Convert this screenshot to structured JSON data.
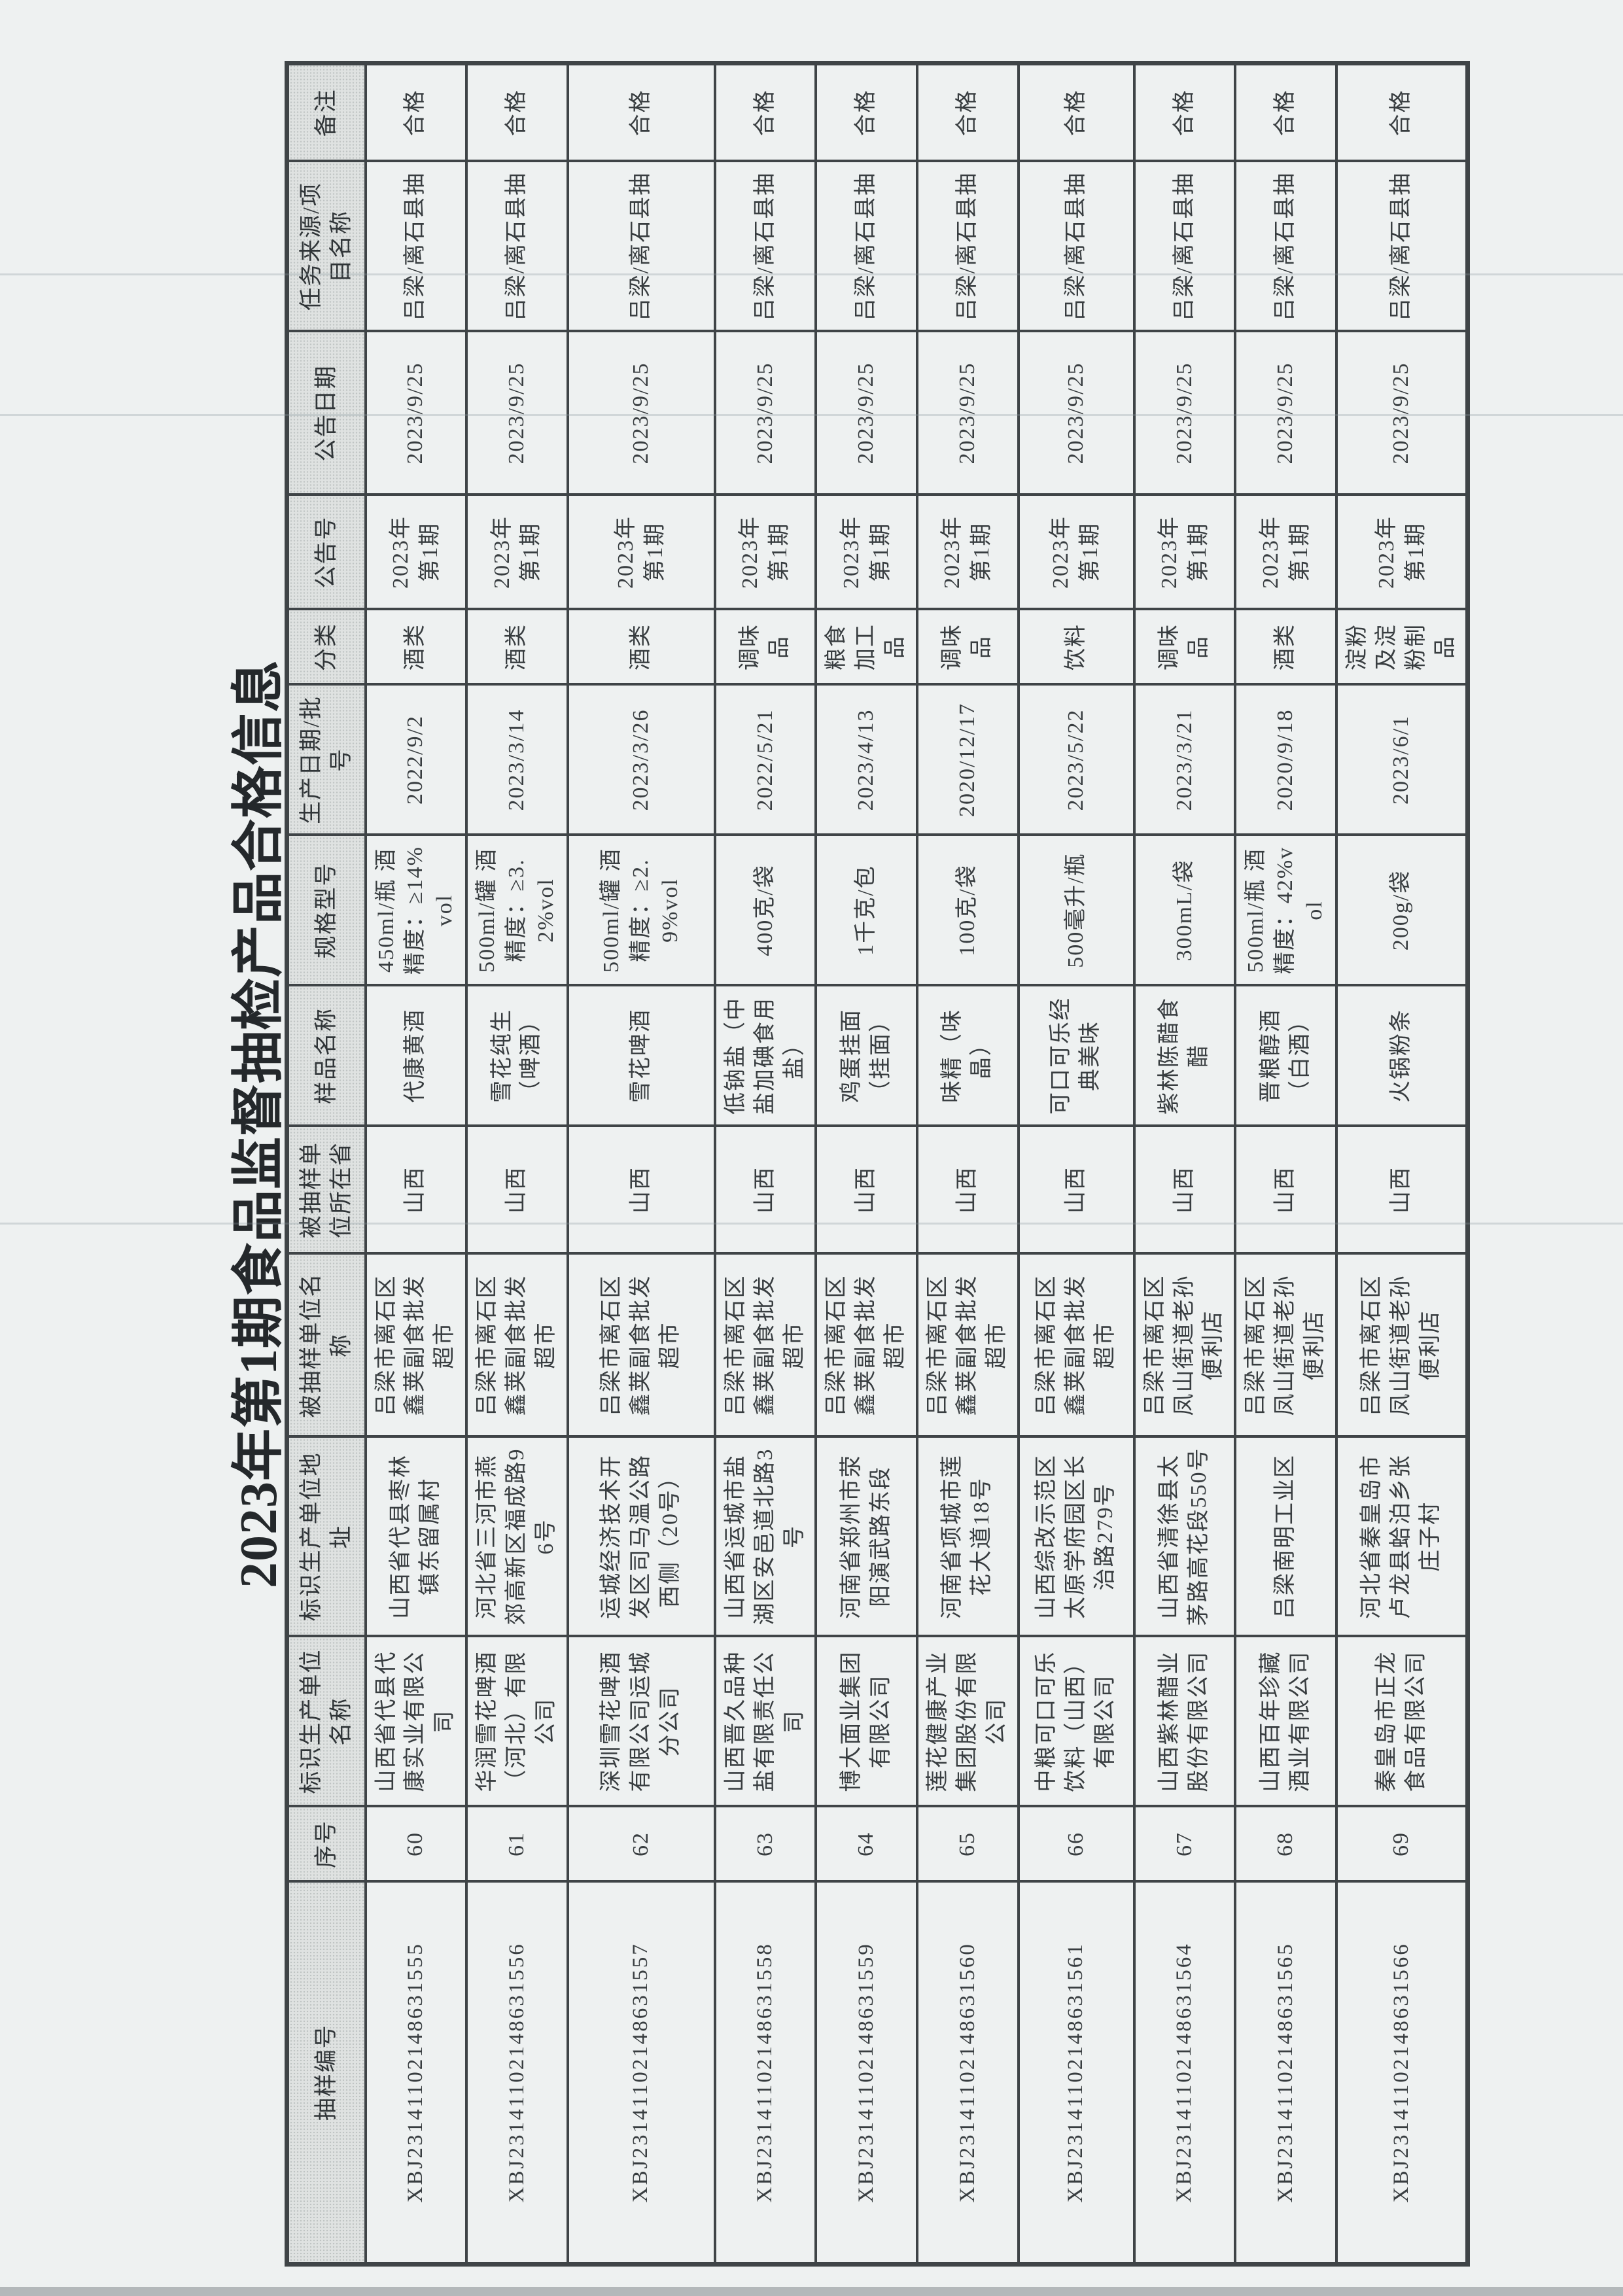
{
  "page": {
    "title": "2023年第1期食品监督抽检产品合格信息"
  },
  "colors": {
    "page_bg": "#eef1f1",
    "border": "#3f4447",
    "header_bg": "#dfe2e1",
    "title_color": "#24282b"
  },
  "table": {
    "headers": [
      "抽样编号",
      "序号",
      "标识生产单位名称",
      "标识生产单位地址",
      "被抽样单位名称",
      "被抽样单位所在省",
      "样品名称",
      "规格型号",
      "生产日期/批号",
      "分类",
      "公告号",
      "公告日期",
      "任务来源/项目名称",
      "备注"
    ],
    "rows": [
      [
        "XBJ23141102148631555",
        "60",
        "山西省代县代康实业有限公司",
        "山西省代县枣林镇东留属村",
        "吕梁市离石区鑫荚副食批发超市",
        "山西",
        "代康黄酒",
        "450ml/瓶 酒精度：≥14%vol",
        "2022/9/2",
        "酒类",
        "2023年第1期",
        "2023/9/25",
        "吕梁/离石县抽",
        "合格"
      ],
      [
        "XBJ23141102148631556",
        "61",
        "华润雪花啤酒（河北）有限公司",
        "河北省三河市燕郊高新区福成路96号",
        "吕梁市离石区鑫荚副食批发超市",
        "山西",
        "雪花纯生（啤酒）",
        "500ml/罐 酒精度：≥3.2%vol",
        "2023/3/14",
        "酒类",
        "2023年第1期",
        "2023/9/25",
        "吕梁/离石县抽",
        "合格"
      ],
      [
        "XBJ23141102148631557",
        "62",
        "深圳雪花啤酒有限公司运城分公司",
        "运城经济技术开发区司马温公路西侧（20号）",
        "吕梁市离石区鑫荚副食批发超市",
        "山西",
        "雪花啤酒",
        "500ml/罐 酒精度：≥2.9%vol",
        "2023/3/26",
        "酒类",
        "2023年第1期",
        "2023/9/25",
        "吕梁/离石县抽",
        "合格"
      ],
      [
        "XBJ23141102148631558",
        "63",
        "山西晋久品种盐有限责任公司",
        "山西省运城市盐湖区安邑道北路3号",
        "吕梁市离石区鑫荚副食批发超市",
        "山西",
        "低钠盐（中盐加碘食用盐）",
        "400克/袋",
        "2022/5/21",
        "调味品",
        "2023年第1期",
        "2023/9/25",
        "吕梁/离石县抽",
        "合格"
      ],
      [
        "XBJ23141102148631559",
        "64",
        "博大面业集团有限公司",
        "河南省郑州市荥阳演武路东段",
        "吕梁市离石区鑫荚副食批发超市",
        "山西",
        "鸡蛋挂面（挂面）",
        "1千克/包",
        "2023/4/13",
        "粮食加工品",
        "2023年第1期",
        "2023/9/25",
        "吕梁/离石县抽",
        "合格"
      ],
      [
        "XBJ23141102148631560",
        "65",
        "莲花健康产业集团股份有限公司",
        "河南省项城市莲花大道18号",
        "吕梁市离石区鑫荚副食批发超市",
        "山西",
        "味精（味晶）",
        "100克/袋",
        "2020/12/17",
        "调味品",
        "2023年第1期",
        "2023/9/25",
        "吕梁/离石县抽",
        "合格"
      ],
      [
        "XBJ23141102148631561",
        "66",
        "中粮可口可乐饮料（山西）有限公司",
        "山西综改示范区太原学府园区长治路279号",
        "吕梁市离石区鑫荚副食批发超市",
        "山西",
        "可口可乐经典美味",
        "500毫升/瓶",
        "2023/5/22",
        "饮料",
        "2023年第1期",
        "2023/9/25",
        "吕梁/离石县抽",
        "合格"
      ],
      [
        "XBJ23141102148631564",
        "67",
        "山西紫林醋业股份有限公司",
        "山西省清徐县太茅路高花段550号",
        "吕梁市离石区凤山街道老孙便利店",
        "山西",
        "紫林陈醋食醋",
        "300mL/袋",
        "2023/3/21",
        "调味品",
        "2023年第1期",
        "2023/9/25",
        "吕梁/离石县抽",
        "合格"
      ],
      [
        "XBJ23141102148631565",
        "68",
        "山西百年珍藏酒业有限公司",
        "吕梁南明工业区",
        "吕梁市离石区凤山街道老孙便利店",
        "山西",
        "晋粮醇酒（白酒）",
        "500ml/瓶 酒精度：42%vol",
        "2020/9/18",
        "酒类",
        "2023年第1期",
        "2023/9/25",
        "吕梁/离石县抽",
        "合格"
      ],
      [
        "XBJ23141102148631566",
        "69",
        "秦皇岛市正龙食品有限公司",
        "河北省秦皇岛市卢龙县蛤泊乡张庄子村",
        "吕梁市离石区凤山街道老孙便利店",
        "山西",
        "火锅粉条",
        "200g/袋",
        "2023/6/1",
        "淀粉及淀粉制品",
        "2023年第1期",
        "2023/9/25",
        "吕梁/离石县抽",
        "合格"
      ]
    ]
  }
}
